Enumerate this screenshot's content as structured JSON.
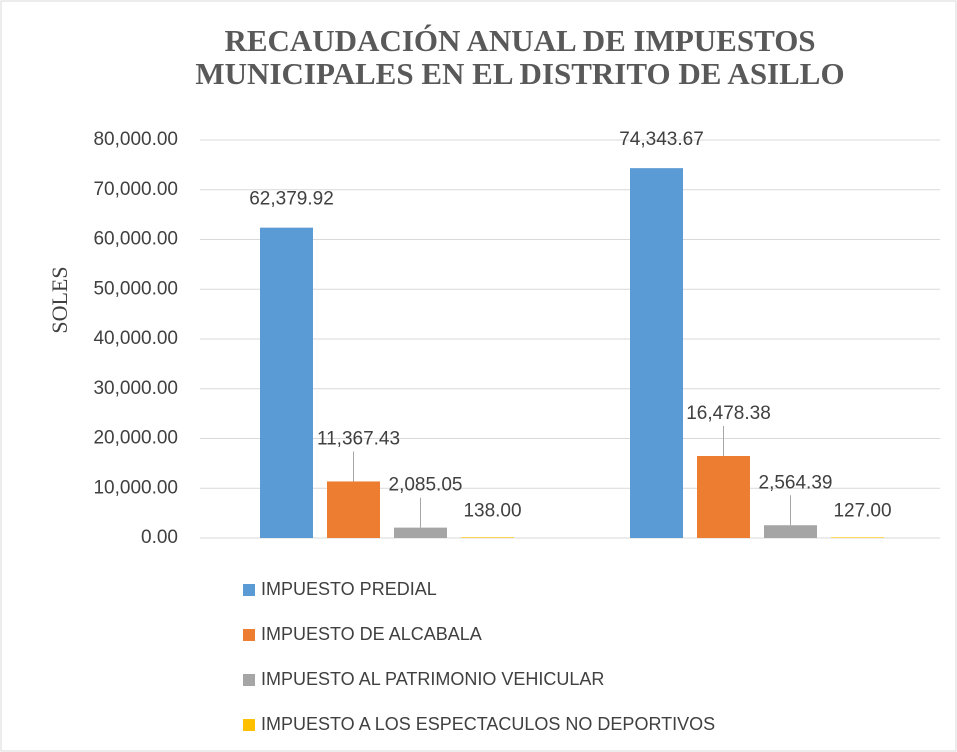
{
  "chart_data": {
    "type": "bar",
    "title": [
      "RECAUDACIÓN ANUAL DE IMPUESTOS",
      "MUNICIPALES EN EL DISTRITO DE ASILLO"
    ],
    "y_label": "SOLES",
    "categories": [
      null,
      null
    ],
    "series": [
      {
        "name": "IMPUESTO PREDIAL",
        "color": "#5b9bd5",
        "values": [
          62379.92,
          74343.67
        ],
        "value_labels": [
          "62,379.92",
          "74,343.67"
        ]
      },
      {
        "name": "IMPUESTO DE ALCABALA",
        "color": "#ed7d31",
        "values": [
          11367.43,
          16478.38
        ],
        "value_labels": [
          "11,367.43",
          "16,478.38"
        ]
      },
      {
        "name": "IMPUESTO AL PATRIMONIO VEHICULAR",
        "color": "#a5a5a5",
        "values": [
          2085.05,
          2564.39
        ],
        "value_labels": [
          "2,085.05",
          "2,564.39"
        ]
      },
      {
        "name": "IMPUESTO A LOS ESPECTACULOS NO DEPORTIVOS",
        "color": "#ffc000",
        "values": [
          138,
          127
        ],
        "value_labels": [
          "138.00",
          "127.00"
        ]
      }
    ],
    "ylim": [
      0,
      80000
    ],
    "yticks": [
      {
        "value": 0,
        "label": "0.00"
      },
      {
        "value": 10000,
        "label": "10,000.00"
      },
      {
        "value": 20000,
        "label": "20,000.00"
      },
      {
        "value": 30000,
        "label": "30,000.00"
      },
      {
        "value": 40000,
        "label": "40,000.00"
      },
      {
        "value": 50000,
        "label": "50,000.00"
      },
      {
        "value": 60000,
        "label": "60,000.00"
      },
      {
        "value": 70000,
        "label": "70,000.00"
      },
      {
        "value": 80000,
        "label": "80,000.00"
      }
    ],
    "grid": true,
    "legend": "bottom"
  }
}
